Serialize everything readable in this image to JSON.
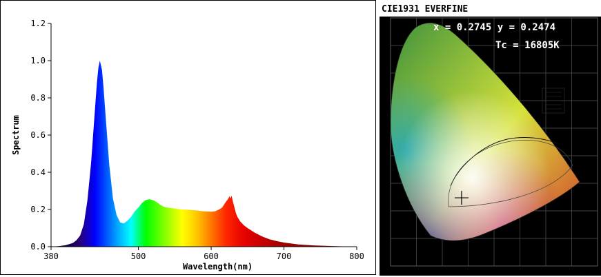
{
  "chart_data": [
    {
      "type": "area",
      "xlabel": "Wavelength(nm)",
      "ylabel": "Spectrum",
      "xlim": [
        380,
        800
      ],
      "ylim": [
        0,
        1.2
      ],
      "x_ticks": [
        380,
        500,
        600,
        700,
        800
      ],
      "y_ticks": [
        "0.0",
        "0.2",
        "0.4",
        "0.6",
        "0.8",
        "1.0",
        "1.2"
      ],
      "grid": false,
      "fill": "wavelength-rainbow",
      "x": [
        380,
        390,
        400,
        410,
        415,
        420,
        425,
        430,
        435,
        440,
        443,
        445,
        447,
        450,
        452,
        455,
        460,
        465,
        470,
        475,
        480,
        485,
        490,
        495,
        500,
        505,
        510,
        515,
        520,
        525,
        530,
        535,
        540,
        550,
        560,
        570,
        580,
        590,
        600,
        605,
        610,
        615,
        620,
        623,
        625,
        627,
        628,
        630,
        632,
        634,
        636,
        640,
        645,
        650,
        660,
        670,
        680,
        690,
        700,
        720,
        740,
        760,
        780,
        800
      ],
      "y": [
        0.0,
        0.003,
        0.008,
        0.02,
        0.035,
        0.06,
        0.12,
        0.25,
        0.45,
        0.72,
        0.88,
        0.96,
        1.0,
        0.95,
        0.86,
        0.7,
        0.44,
        0.26,
        0.17,
        0.13,
        0.125,
        0.14,
        0.16,
        0.19,
        0.21,
        0.235,
        0.25,
        0.255,
        0.25,
        0.24,
        0.225,
        0.215,
        0.21,
        0.205,
        0.2,
        0.198,
        0.195,
        0.19,
        0.188,
        0.19,
        0.198,
        0.21,
        0.24,
        0.255,
        0.27,
        0.26,
        0.275,
        0.24,
        0.21,
        0.18,
        0.16,
        0.135,
        0.115,
        0.1,
        0.075,
        0.055,
        0.04,
        0.03,
        0.022,
        0.012,
        0.007,
        0.004,
        0.002,
        0.0
      ]
    },
    {
      "type": "scatter",
      "title": "CIE1931 EVERFINE",
      "x": [
        0.2745
      ],
      "y": [
        0.2474
      ],
      "readout_xy": "x = 0.2745 y = 0.2474",
      "readout_tc": "Tc = 16805K"
    }
  ]
}
